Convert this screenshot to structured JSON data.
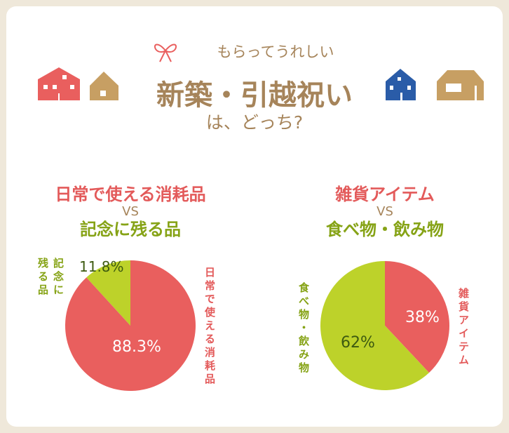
{
  "header": {
    "subtitle": "もらってうれしい",
    "title": "新築・引越祝い",
    "question": "は、どっち?"
  },
  "colors": {
    "red": "#e95f5e",
    "green": "#bdd22a",
    "brown": "#a6845a",
    "blue": "#2a5ca8"
  },
  "chart_data": [
    {
      "type": "pie",
      "title_a": "日常で使える消耗品",
      "vs": "VS",
      "title_b": "記念に残る品",
      "slices": [
        {
          "name": "日常で使える消耗品",
          "value": 88.3,
          "label": "88.3%"
        },
        {
          "name": "記念に残る品",
          "value": 11.8,
          "label": "11.8%"
        }
      ]
    },
    {
      "type": "pie",
      "title_a": "雑貨アイテム",
      "vs": "VS",
      "title_b": "食べ物・飲み物",
      "slices": [
        {
          "name": "雑貨アイテム",
          "value": 38,
          "label": "38%"
        },
        {
          "name": "食べ物・飲み物",
          "value": 62,
          "label": "62%"
        }
      ]
    }
  ]
}
